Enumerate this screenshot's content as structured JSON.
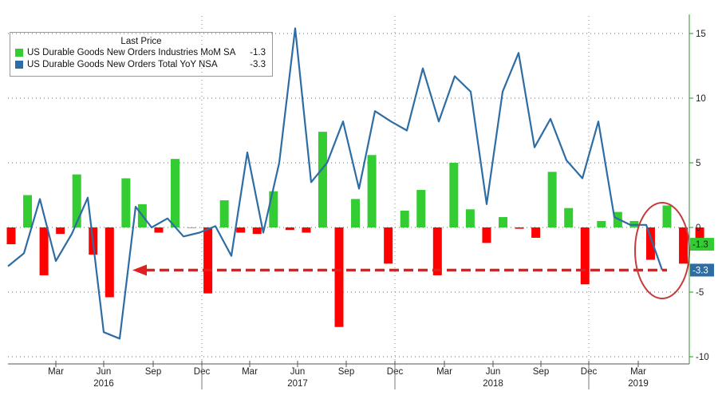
{
  "chart_data": {
    "type": "bar+line",
    "y_axis": {
      "ticks": [
        15,
        10,
        5,
        0,
        -5,
        -10
      ],
      "range": [
        -10.5,
        16.5
      ],
      "side": "right"
    },
    "x_axis": {
      "month_labels": [
        "Mar",
        "Jun",
        "Sep",
        "Dec",
        "Mar",
        "Jun",
        "Sep",
        "Dec",
        "Mar",
        "Jun",
        "Sep",
        "Dec",
        "Mar"
      ],
      "year_labels": [
        "2016",
        "2017",
        "2018",
        "2019"
      ]
    },
    "legend": {
      "title": "Last Price",
      "entries": [
        {
          "name": "US Durable Goods New Orders Industries MoM SA",
          "value": "-1.3",
          "color": "#33cc33"
        },
        {
          "name": "US Durable Goods New Orders Total YoY NSA",
          "value": "-3.3",
          "color": "#2e6da4"
        }
      ]
    },
    "series": [
      {
        "name": "US Durable Goods New Orders Industries MoM SA",
        "kind": "bar",
        "colors": {
          "positive": "#33cc33",
          "negative": "#ff0000"
        },
        "values": [
          -1.3,
          2.5,
          -3.7,
          -0.5,
          4.1,
          -2.1,
          -5.4,
          3.8,
          1.8,
          -0.4,
          5.3,
          0.0,
          -5.1,
          2.1,
          -0.4,
          -0.5,
          2.8,
          -0.2,
          -0.4,
          7.4,
          -7.7,
          2.2,
          5.6,
          -2.8,
          1.3,
          2.9,
          -3.7,
          5.0,
          1.4,
          -1.2,
          0.8,
          -0.1,
          -0.8,
          4.3,
          1.5,
          -4.4,
          0.5,
          1.2,
          0.5,
          -2.5,
          1.7,
          -2.8,
          -1.3
        ]
      },
      {
        "name": "US Durable Goods New Orders Total YoY NSA",
        "kind": "line",
        "color": "#2e6da4",
        "values": [
          -3.0,
          -2.0,
          2.2,
          -2.6,
          -0.5,
          2.3,
          -8.1,
          -8.6,
          1.6,
          0.0,
          0.7,
          -0.7,
          -0.4,
          0.1,
          -2.2,
          5.8,
          -0.4,
          5.0,
          15.4,
          3.5,
          5.0,
          8.2,
          3.0,
          9.0,
          8.2,
          7.5,
          12.3,
          8.2,
          11.7,
          10.5,
          1.8,
          10.5,
          13.5,
          6.2,
          8.4,
          5.2,
          3.8,
          8.2,
          0.8,
          0.2,
          0.2,
          -3.3
        ]
      }
    ],
    "last_values": [
      {
        "label": "-1.3",
        "color": "#33cc33"
      },
      {
        "label": "-3.3",
        "color": "#2e6da4"
      }
    ],
    "annotations": {
      "reference_arrow_value": -3.3,
      "arrow_color": "#e02020",
      "circle_color": "#c43c3c"
    }
  }
}
